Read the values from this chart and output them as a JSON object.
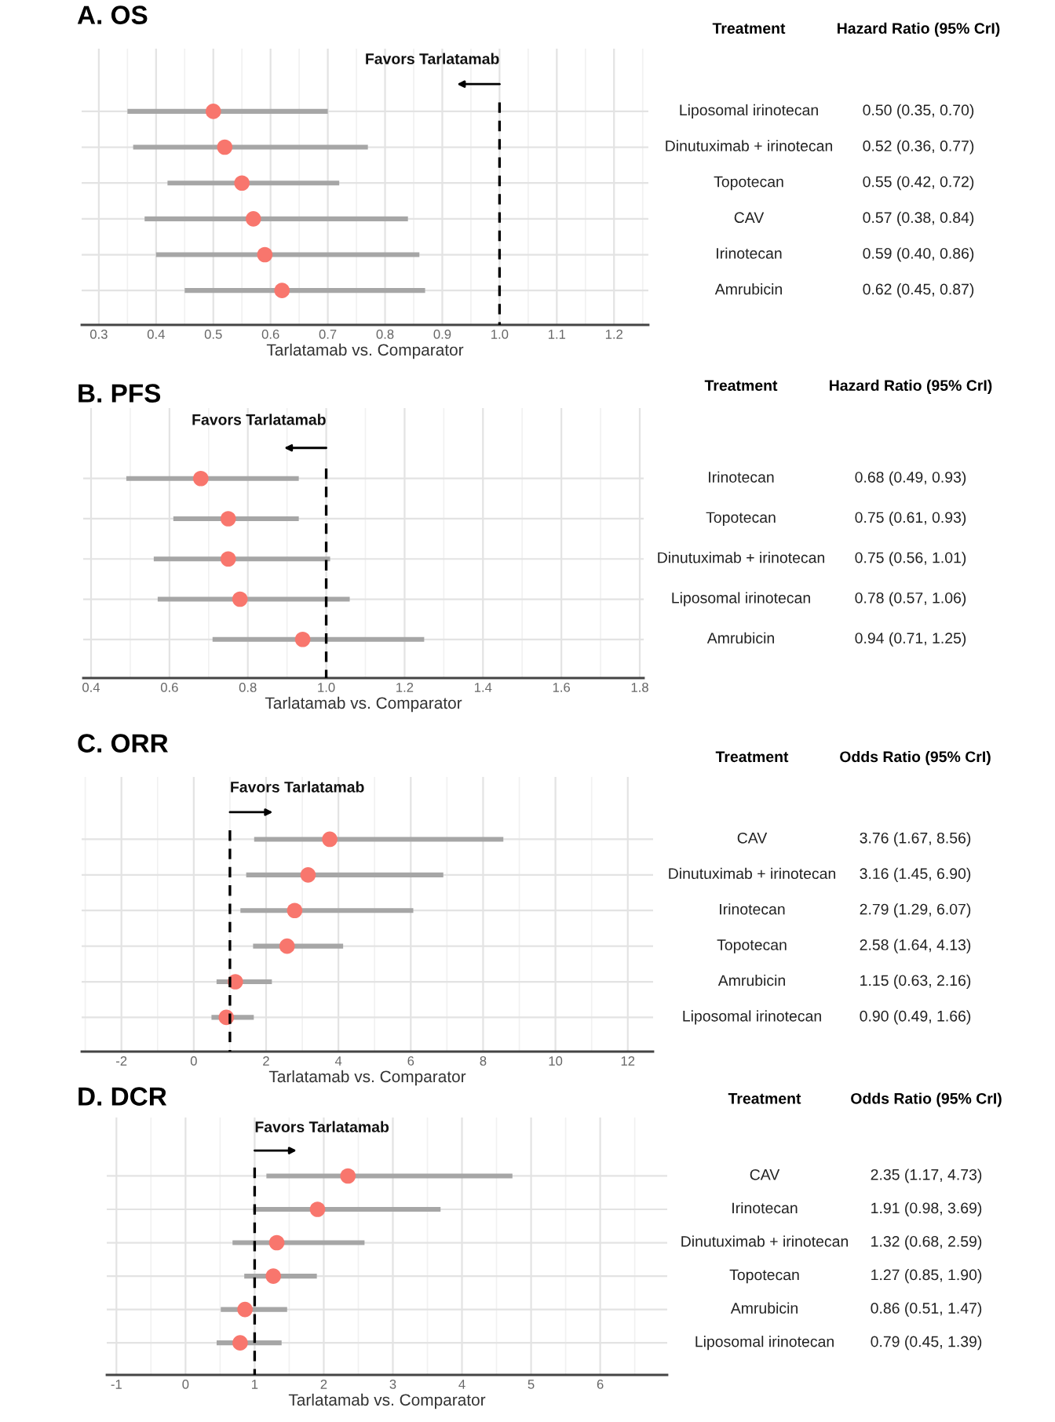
{
  "chart_data": [
    {
      "type": "scatter",
      "orientation": "horizontal",
      "title": "A. OS",
      "xlabel": "Tarlatamab vs. Comparator",
      "ylabel": "Treatment",
      "y2label": "Hazard Ratio (95% CrI)",
      "categories": [
        "Liposomal irinotecan",
        "Dinutuximab + irinotecan",
        "Topotecan",
        "CAV",
        "Irinotecan",
        "Amrubicin"
      ],
      "values": [
        0.5,
        0.52,
        0.55,
        0.57,
        0.59,
        0.62
      ],
      "errors": [
        [
          0.35,
          0.7
        ],
        [
          0.36,
          0.77
        ],
        [
          0.42,
          0.72
        ],
        [
          0.38,
          0.84
        ],
        [
          0.4,
          0.86
        ],
        [
          0.45,
          0.87
        ]
      ],
      "value_labels": [
        "0.50 (0.35, 0.70)",
        "0.52 (0.36, 0.77)",
        "0.55 (0.42, 0.72)",
        "0.57 (0.38, 0.84)",
        "0.59 (0.40, 0.86)",
        "0.62 (0.45, 0.87)"
      ],
      "color": "#f8766d",
      "marker": "circle",
      "xlim": [
        0.27,
        1.26
      ],
      "xticks": [
        0.3,
        0.4,
        0.5,
        0.6,
        0.7,
        0.8,
        0.9,
        {
          "value": 1,
          "label": "1.0"
        },
        1.1,
        1.2
      ],
      "ref_lines": [
        {
          "axis": "x",
          "value": 1,
          "color": "#000000",
          "line_style": "dashed"
        }
      ],
      "annotations": [
        "Favors Tarlatamab"
      ],
      "grid": true
    },
    {
      "type": "scatter",
      "orientation": "horizontal",
      "title": "B. PFS",
      "xlabel": "Tarlatamab vs. Comparator",
      "ylabel": "Treatment",
      "y2label": "Hazard Ratio (95% CrI)",
      "categories": [
        "Irinotecan",
        "Topotecan",
        "Dinutuximab + irinotecan",
        "Liposomal irinotecan",
        "Amrubicin"
      ],
      "values": [
        0.68,
        0.75,
        0.75,
        0.78,
        0.94
      ],
      "errors": [
        [
          0.49,
          0.93
        ],
        [
          0.61,
          0.93
        ],
        [
          0.56,
          1.01
        ],
        [
          0.57,
          1.06
        ],
        [
          0.71,
          1.25
        ]
      ],
      "value_labels": [
        "0.68 (0.49, 0.93)",
        "0.75 (0.61, 0.93)",
        "0.75 (0.56, 1.01)",
        "0.78 (0.57, 1.06)",
        "0.94 (0.71, 1.25)"
      ],
      "color": "#f8766d",
      "marker": "circle",
      "xlim": [
        0.38,
        1.81
      ],
      "xticks": [
        0.4,
        0.6,
        0.8,
        {
          "value": 1,
          "label": "1.0"
        },
        1.2,
        1.4,
        1.6,
        1.8
      ],
      "ref_lines": [
        {
          "axis": "x",
          "value": 1,
          "color": "#000000",
          "line_style": "dashed"
        }
      ],
      "annotations": [
        "Favors Tarlatamab"
      ],
      "grid": true
    },
    {
      "type": "scatter",
      "orientation": "horizontal",
      "title": "C. ORR",
      "xlabel": "Tarlatamab vs. Comparator",
      "ylabel": "Treatment",
      "y2label": "Odds Ratio (95% CrI)",
      "categories": [
        "CAV",
        "Dinutuximab + irinotecan",
        "Irinotecan",
        "Topotecan",
        "Amrubicin",
        "Liposomal irinotecan"
      ],
      "values": [
        3.76,
        3.16,
        2.79,
        2.58,
        1.15,
        0.9
      ],
      "errors": [
        [
          1.67,
          8.56
        ],
        [
          1.45,
          6.9
        ],
        [
          1.29,
          6.07
        ],
        [
          1.64,
          4.13
        ],
        [
          0.63,
          2.16
        ],
        [
          0.49,
          1.66
        ]
      ],
      "value_labels": [
        "3.76 (1.67, 8.56)",
        "3.16 (1.45, 6.90)",
        "2.79 (1.29, 6.07)",
        "2.58 (1.64, 4.13)",
        "1.15 (0.63, 2.16)",
        "0.90 (0.49, 1.66)"
      ],
      "color": "#f8766d",
      "marker": "circle",
      "xlim": [
        -3.1,
        12.7
      ],
      "xticks": [
        -2,
        0,
        2,
        4,
        6,
        8,
        10,
        12
      ],
      "ref_lines": [
        {
          "axis": "x",
          "value": 1,
          "color": "#000000",
          "line_style": "dashed"
        }
      ],
      "annotations": [
        "Favors Tarlatamab"
      ],
      "grid": true
    },
    {
      "type": "scatter",
      "orientation": "horizontal",
      "title": "D. DCR",
      "xlabel": "Tarlatamab vs. Comparator",
      "ylabel": "Treatment",
      "y2label": "Odds Ratio (95% CrI)",
      "categories": [
        "CAV",
        "Irinotecan",
        "Dinutuximab + irinotecan",
        "Topotecan",
        "Amrubicin",
        "Liposomal irinotecan"
      ],
      "values": [
        2.35,
        1.91,
        1.32,
        1.27,
        0.86,
        0.79
      ],
      "errors": [
        [
          1.17,
          4.73
        ],
        [
          0.98,
          3.69
        ],
        [
          0.68,
          2.59
        ],
        [
          0.85,
          1.9
        ],
        [
          0.51,
          1.47
        ],
        [
          0.45,
          1.39
        ]
      ],
      "value_labels": [
        "2.35 (1.17, 4.73)",
        "1.91 (0.98, 3.69)",
        "1.32 (0.68, 2.59)",
        "1.27 (0.85, 1.90)",
        "0.86 (0.51, 1.47)",
        "0.79 (0.45, 1.39)"
      ],
      "color": "#f8766d",
      "marker": "circle",
      "xlim": [
        -1.14,
        6.97
      ],
      "xticks": [
        -1,
        0,
        1,
        2,
        3,
        4,
        5,
        6
      ],
      "ref_lines": [
        {
          "axis": "x",
          "value": 1,
          "color": "#000000",
          "line_style": "dashed"
        }
      ],
      "annotations": [
        "Favors Tarlatamab"
      ],
      "grid": true
    }
  ]
}
